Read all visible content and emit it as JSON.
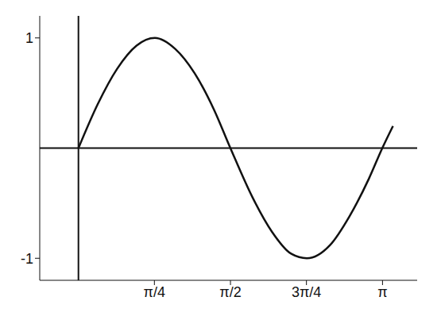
{
  "chart_data": {
    "type": "line",
    "x": [
      0,
      0.2,
      0.4,
      0.6,
      0.79,
      1.0,
      1.2,
      1.4,
      1.57,
      1.8,
      2.0,
      2.2,
      2.36,
      2.6,
      2.8,
      3.0,
      3.14,
      3.25
    ],
    "values": [
      0,
      0.4,
      0.72,
      0.93,
      1.0,
      0.9,
      0.68,
      0.35,
      0,
      -0.45,
      -0.76,
      -0.96,
      -1.0,
      -0.88,
      -0.62,
      -0.28,
      0,
      0.2
    ],
    "color": "#111111",
    "xlim": [
      -0.4,
      3.5
    ],
    "xticks": [
      {
        "value": 0.785,
        "label": "π/4"
      },
      {
        "value": 1.571,
        "label": "π/2"
      },
      {
        "value": 2.356,
        "label": "3π/4"
      },
      {
        "value": 3.142,
        "label": "π"
      }
    ],
    "ylim": [
      -1.2,
      1.2
    ],
    "yticks": [
      -1,
      1
    ],
    "grid": false
  }
}
